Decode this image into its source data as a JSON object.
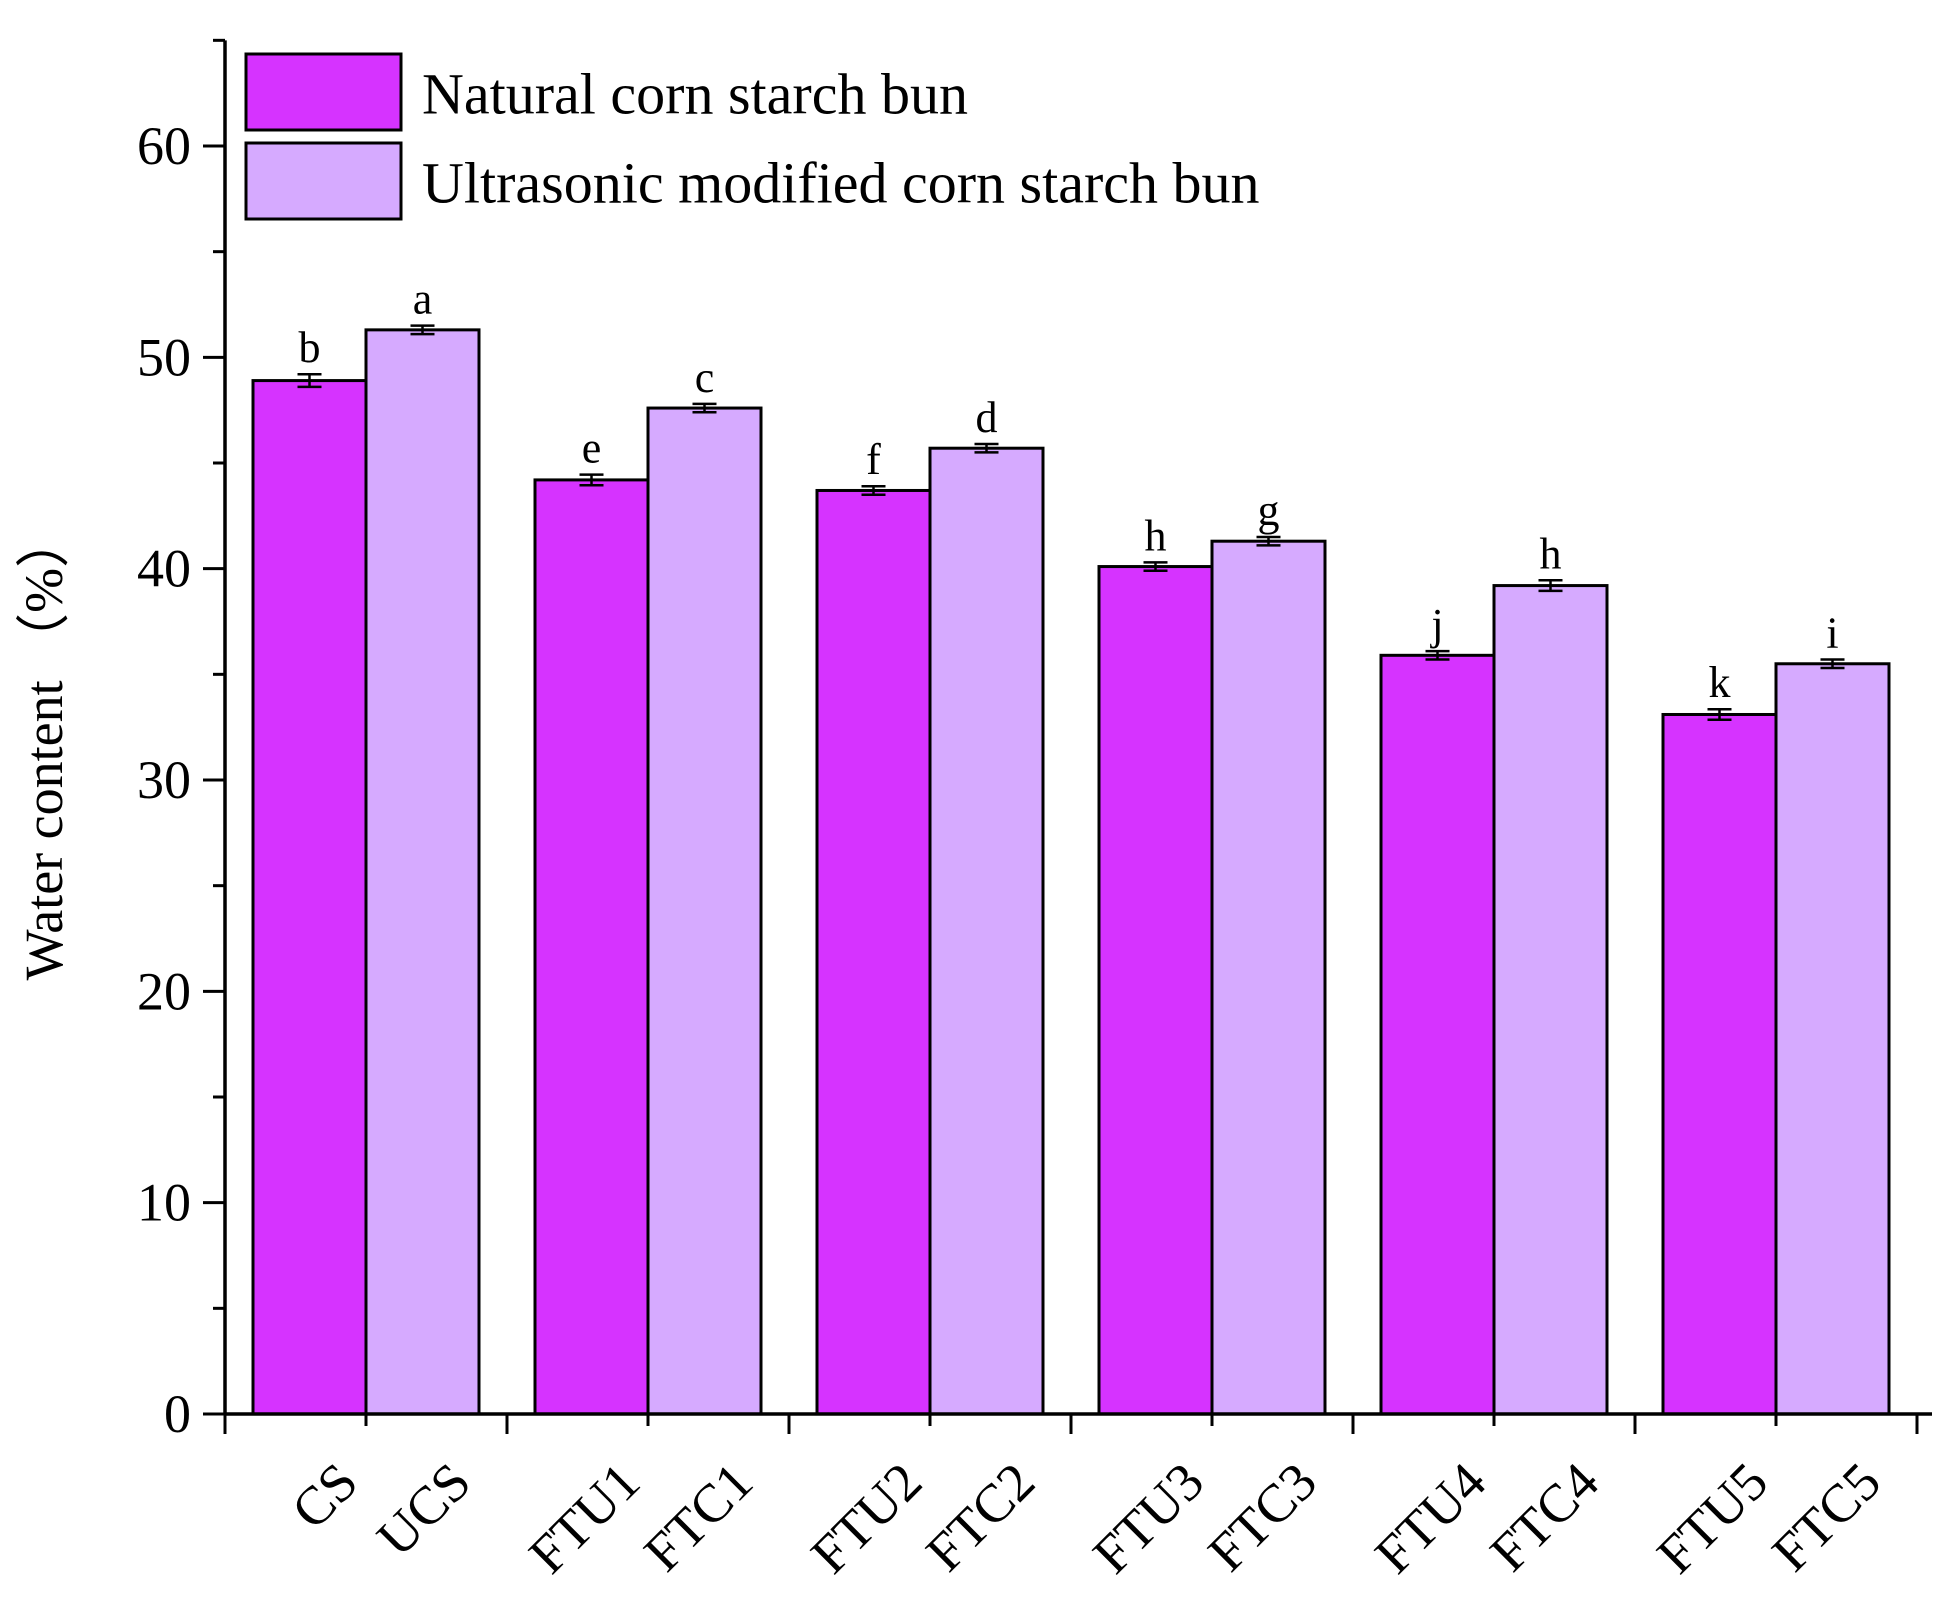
{
  "chart_data": {
    "type": "bar",
    "title": "",
    "xlabel": "",
    "ylabel": "Water content （%）",
    "ylim": [
      0,
      65
    ],
    "yticks": [
      0,
      10,
      20,
      30,
      40,
      50,
      60
    ],
    "grid": false,
    "legend_position": "top-left",
    "bars": [
      {
        "label": "CS",
        "series": 0,
        "value": 48.9,
        "error": 0.3,
        "letter": "b"
      },
      {
        "label": "UCS",
        "series": 1,
        "value": 51.3,
        "error": 0.2,
        "letter": "a"
      },
      {
        "label": "FTU1",
        "series": 0,
        "value": 44.2,
        "error": 0.25,
        "letter": "e"
      },
      {
        "label": "FTC1",
        "series": 1,
        "value": 47.6,
        "error": 0.2,
        "letter": "c"
      },
      {
        "label": "FTU2",
        "series": 0,
        "value": 43.7,
        "error": 0.2,
        "letter": "f"
      },
      {
        "label": "FTC2",
        "series": 1,
        "value": 45.7,
        "error": 0.2,
        "letter": "d"
      },
      {
        "label": "FTU3",
        "series": 0,
        "value": 40.1,
        "error": 0.2,
        "letter": "h"
      },
      {
        "label": "FTC3",
        "series": 1,
        "value": 41.3,
        "error": 0.2,
        "letter": "g"
      },
      {
        "label": "FTU4",
        "series": 0,
        "value": 35.9,
        "error": 0.2,
        "letter": "j"
      },
      {
        "label": "FTC4",
        "series": 1,
        "value": 39.2,
        "error": 0.25,
        "letter": "h"
      },
      {
        "label": "FTU5",
        "series": 0,
        "value": 33.1,
        "error": 0.25,
        "letter": "k"
      },
      {
        "label": "FTC5",
        "series": 1,
        "value": 35.5,
        "error": 0.2,
        "letter": "i"
      }
    ],
    "series": [
      {
        "name": "Natural corn starch bun",
        "color": "#d633ff"
      },
      {
        "name": "Ultrasonic modified corn starch bun",
        "color": "#d6aaff"
      }
    ]
  }
}
